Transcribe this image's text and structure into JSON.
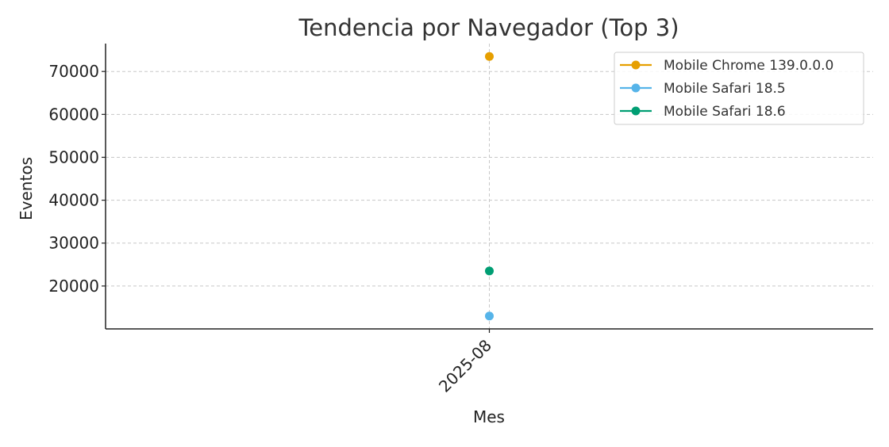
{
  "chart_data": {
    "type": "line",
    "title": "Tendencia por Navegador (Top 3)",
    "xlabel": "Mes",
    "ylabel": "Eventos",
    "categories": [
      "2025-08"
    ],
    "y_ticks": [
      20000,
      30000,
      40000,
      50000,
      60000,
      70000
    ],
    "ylim": [
      10000,
      76500
    ],
    "grid": true,
    "legend_position": "top-right",
    "series": [
      {
        "name": "Mobile Chrome 139.0.0.0",
        "color": "#E69F00",
        "values": [
          73500
        ]
      },
      {
        "name": "Mobile Safari 18.5",
        "color": "#56B4E9",
        "values": [
          13000
        ]
      },
      {
        "name": "Mobile Safari 18.6",
        "color": "#009E73",
        "values": [
          23500
        ]
      }
    ]
  }
}
